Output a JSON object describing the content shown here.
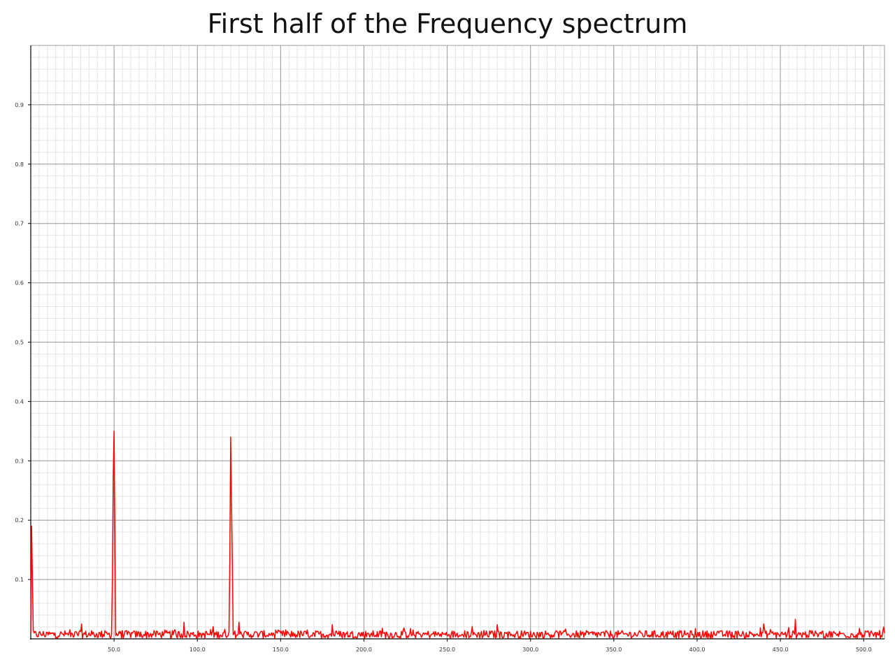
{
  "chart_data": {
    "type": "line",
    "title": "First half of the Frequency spectrum",
    "xlabel": "",
    "ylabel": "",
    "xlim": [
      0,
      512.5
    ],
    "ylim": [
      0,
      1.0
    ],
    "x_ticks": [
      50,
      100,
      150,
      200,
      250,
      300,
      350,
      400,
      450,
      500
    ],
    "x_tick_labels": [
      "50.0",
      "100.0",
      "150.0",
      "200.0",
      "250.0",
      "300.0",
      "350.0",
      "400.0",
      "450.0",
      "500.0"
    ],
    "y_ticks": [
      0.1,
      0.2,
      0.3,
      0.4,
      0.5,
      0.6,
      0.7,
      0.8,
      0.9
    ],
    "y_tick_labels": [
      "0.1",
      "0.2",
      "0.3",
      "0.4",
      "0.5",
      "0.6",
      "0.7",
      "0.8",
      "0.9"
    ],
    "grid": true,
    "legend": false,
    "series": [
      {
        "color": "#ff0000",
        "x_step": 0.5,
        "noise_floor": 0.01,
        "peaks": [
          {
            "x": 0.5,
            "y": 0.19
          },
          {
            "x": 1.0,
            "y": 0.1
          },
          {
            "x": 49.0,
            "y": 0.1
          },
          {
            "x": 49.5,
            "y": 0.27
          },
          {
            "x": 50.0,
            "y": 0.35
          },
          {
            "x": 50.5,
            "y": 0.18
          },
          {
            "x": 119.5,
            "y": 0.13
          },
          {
            "x": 120.0,
            "y": 0.34
          },
          {
            "x": 120.5,
            "y": 0.23
          },
          {
            "x": 121.0,
            "y": 0.13
          },
          {
            "x": 30.5,
            "y": 0.025
          },
          {
            "x": 92.0,
            "y": 0.028
          },
          {
            "x": 125.0,
            "y": 0.028
          },
          {
            "x": 181.0,
            "y": 0.024
          },
          {
            "x": 280.0,
            "y": 0.024
          },
          {
            "x": 440.0,
            "y": 0.025
          },
          {
            "x": 459.0,
            "y": 0.033
          },
          {
            "x": 512.0,
            "y": 0.02
          }
        ]
      }
    ]
  }
}
